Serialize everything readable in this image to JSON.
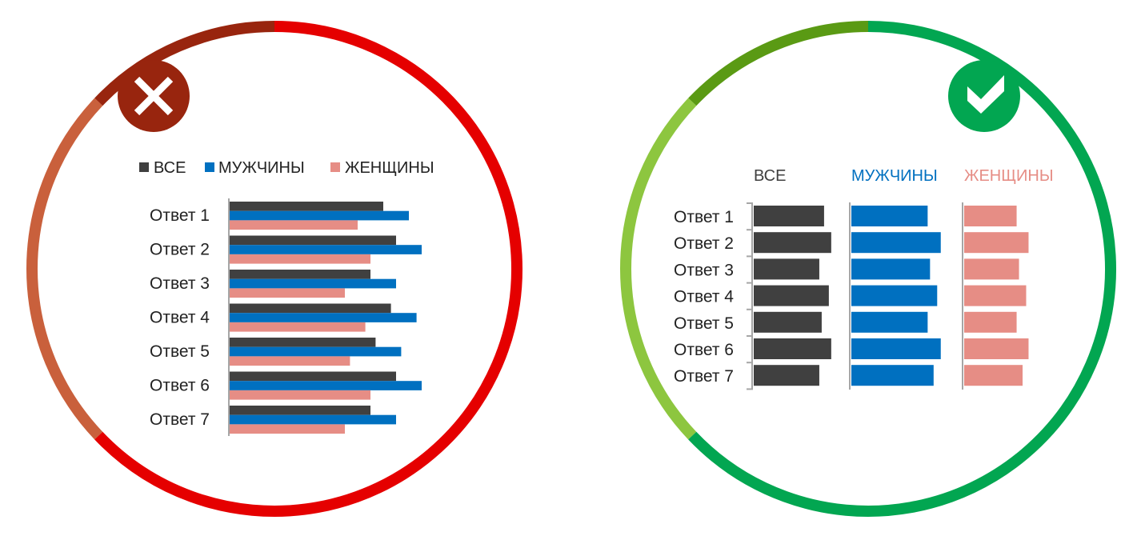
{
  "colors": {
    "all": "#404040",
    "men": "#0070c0",
    "women": "#e68d85",
    "bad_ring": [
      "#98250e",
      "#c9603c",
      "#e50000"
    ],
    "good_ring": [
      "#5a9a14",
      "#8dc63f",
      "#02a651"
    ],
    "bad_badge": "#98250e",
    "good_badge": "#02a651",
    "axis": "#a6a6a6"
  },
  "icons": {
    "bad": "close-x-icon",
    "good": "checkmark-icon"
  },
  "chart_data": [
    {
      "type": "bar",
      "orientation": "horizontal",
      "layout": "grouped",
      "categories": [
        "Ответ 1",
        "Ответ 2",
        "Ответ 3",
        "Ответ 4",
        "Ответ 5",
        "Ответ 6",
        "Ответ 7"
      ],
      "series": [
        {
          "name": "ВСЕ",
          "values": [
            60,
            65,
            55,
            63,
            57,
            65,
            55
          ]
        },
        {
          "name": "МУЖЧИНЫ",
          "values": [
            70,
            75,
            65,
            73,
            67,
            75,
            65
          ]
        },
        {
          "name": "ЖЕНЩИНЫ",
          "values": [
            50,
            55,
            45,
            53,
            47,
            55,
            45
          ]
        }
      ],
      "legend": "top",
      "grid": false
    },
    {
      "type": "bar",
      "orientation": "horizontal",
      "layout": "small-multiples",
      "categories": [
        "Ответ 1",
        "Ответ 2",
        "Ответ 3",
        "Ответ 4",
        "Ответ 5",
        "Ответ 6",
        "Ответ 7"
      ],
      "series": [
        {
          "name": "ВСЕ",
          "values": [
            59,
            65,
            55,
            63,
            57,
            65,
            55
          ]
        },
        {
          "name": "МУЖЧИНЫ",
          "values": [
            64,
            75,
            66,
            72,
            64,
            75,
            69
          ]
        },
        {
          "name": "ЖЕНЩИНЫ",
          "values": [
            44,
            54,
            46,
            52,
            44,
            54,
            49
          ]
        }
      ],
      "legend": "column-headers",
      "grid": false
    }
  ]
}
